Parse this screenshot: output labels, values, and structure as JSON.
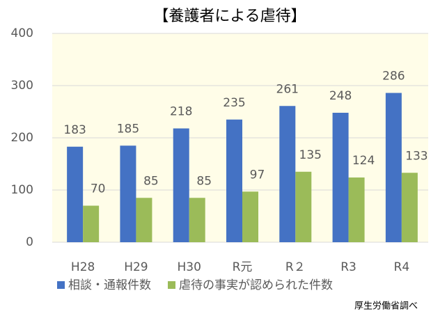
{
  "chart_data": {
    "type": "bar",
    "title": "【養護者による虐待】",
    "categories": [
      "H28",
      "H29",
      "H30",
      "R元",
      "R２",
      "R3",
      "R4"
    ],
    "series": [
      {
        "name": "相談・通報件数",
        "color": "#4472c4",
        "values": [
          183,
          185,
          218,
          235,
          261,
          248,
          286
        ]
      },
      {
        "name": "虐待の事実が認められた件数",
        "color": "#9bbb59",
        "values": [
          70,
          85,
          85,
          97,
          135,
          124,
          133
        ]
      }
    ],
    "ylim": [
      0,
      400
    ],
    "yticks": [
      0,
      100,
      200,
      300,
      400
    ],
    "grid": true,
    "legend": "bottom",
    "note": "厚生労働省調べ"
  }
}
